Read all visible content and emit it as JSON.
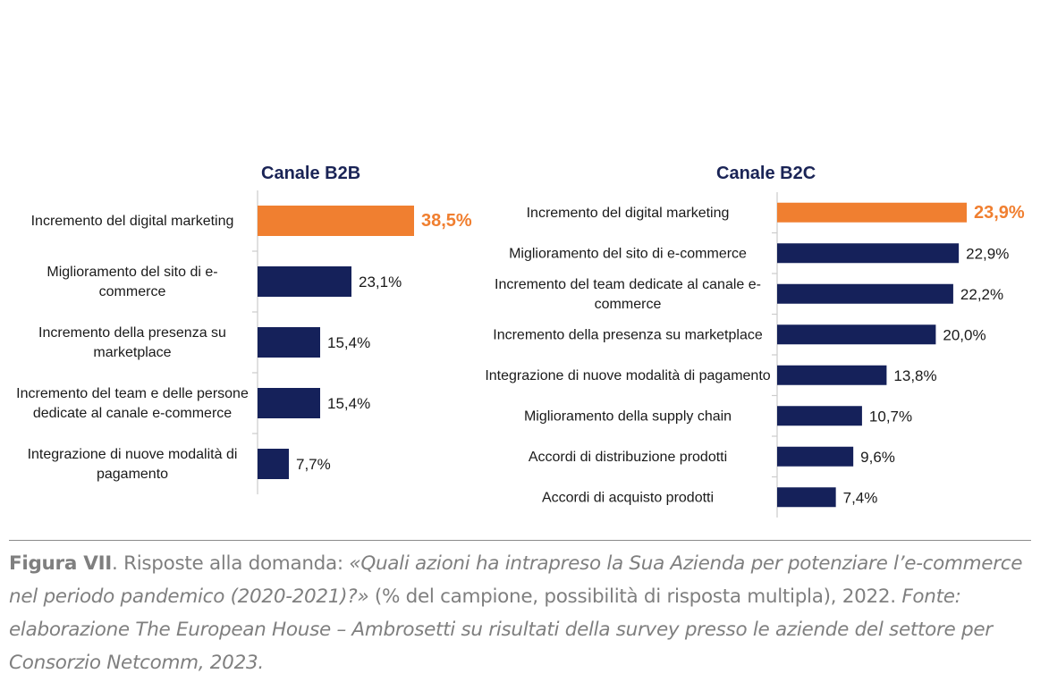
{
  "chart_data": [
    {
      "type": "bar",
      "orientation": "horizontal",
      "title": "Canale B2B",
      "categories": [
        [
          "Incremento del digital marketing"
        ],
        [
          "Miglioramento del sito di e-",
          "commerce"
        ],
        [
          "Incremento della presenza su",
          "marketplace"
        ],
        [
          "Incremento del team e delle persone",
          "dedicate al canale e-commerce"
        ],
        [
          "Integrazione di nuove modalità di",
          "pagamento"
        ]
      ],
      "values": [
        38.5,
        23.1,
        15.4,
        15.4,
        7.7
      ],
      "value_labels": [
        "38,5%",
        "23,1%",
        "15,4%",
        "15,4%",
        "7,7%"
      ],
      "highlight_index": 0,
      "colors": {
        "bar": "#15215a",
        "highlight": "#f07f30"
      }
    },
    {
      "type": "bar",
      "orientation": "horizontal",
      "title": "Canale B2C",
      "categories": [
        [
          "Incremento del digital marketing"
        ],
        [
          "Miglioramento del sito di e-commerce"
        ],
        [
          "Incremento del team  dedicate al canale e-",
          "commerce"
        ],
        [
          "Incremento della presenza su marketplace"
        ],
        [
          "Integrazione di nuove modalità di pagamento"
        ],
        [
          "Miglioramento  della supply chain"
        ],
        [
          "Accordi di distribuzione prodotti"
        ],
        [
          "Accordi di acquisto prodotti"
        ]
      ],
      "values": [
        23.9,
        22.9,
        22.2,
        20.0,
        13.8,
        10.7,
        9.6,
        7.4
      ],
      "value_labels": [
        "23,9%",
        "22,9%",
        "22,2%",
        "20,0%",
        "13,8%",
        "10,7%",
        "9,6%",
        "7,4%"
      ],
      "highlight_index": 0,
      "colors": {
        "bar": "#15215a",
        "highlight": "#f07f30"
      }
    }
  ],
  "caption": {
    "label": "Figura VII",
    "text1": ". Risposte alla domanda: ",
    "question": "«Quali azioni ha intrapreso la Sua Azienda per potenziare l’e-commerce nel periodo pandemico (2020-2021)?»",
    "text2": " (% del campione, possibilità di risposta multipla), 2022. ",
    "source": "Fonte: elaborazione The European House – Ambrosetti su risultati della survey presso le aziende del settore per Consorzio Netcomm, 2023."
  }
}
